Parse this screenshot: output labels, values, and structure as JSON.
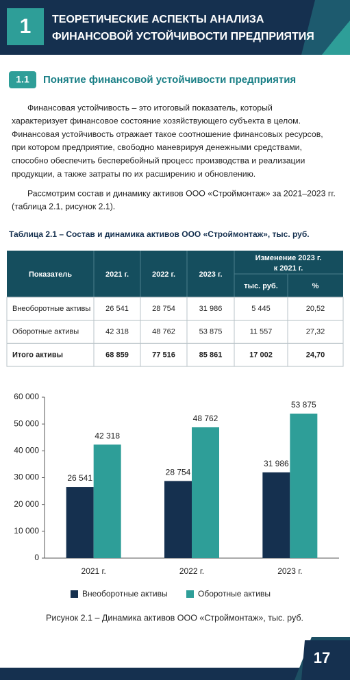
{
  "header": {
    "number": "1",
    "title": [
      "ТЕОРЕТИЧЕСКИЕ АСПЕКТЫ АНАЛИЗА",
      "ФИНАНСОВОЙ УСТОЙЧИВОСТИ ПРЕДПРИЯТИЯ"
    ]
  },
  "section": {
    "number": "1.1",
    "title": "Понятие финансовой устойчивости предприятия"
  },
  "paragraphs": [
    [
      "Финансовая устойчивость – это итоговый показатель, который",
      "характеризует финансовое состояние хозяйствующего субъекта в целом.",
      "Финансовая устойчивость отражает такое соотношение финансовых ресурсов,",
      "при котором предприятие, свободно маневрируя денежными средствами,",
      "способно обеспечить бесперебойный процесс производства и реализации",
      "продукции, а также затраты по их расширению и обновлению."
    ],
    [
      "Рассмотрим состав и динамику активов ООО «Строймонтаж» за 2021–2023 гг.",
      "(таблица 2.1, рисунок 2.1)."
    ]
  ],
  "table": {
    "caption": "Таблица 2.1 – Состав и динамика активов ООО «Строймонтаж», тыс. руб.",
    "columns": [
      "Показатель",
      "2021 г.",
      "2022 г.",
      "2023 г."
    ],
    "change_header": [
      "Изменение 2023 г.",
      "к 2021 г."
    ],
    "change_columns": [
      "тыс. руб.",
      "%"
    ],
    "rows": [
      [
        "Внеоборотные активы",
        "26 541",
        "28 754",
        "31 986",
        "5 445",
        "20,52"
      ],
      [
        "Оборотные активы",
        "42 318",
        "48 762",
        "53 875",
        "11 557",
        "27,32"
      ],
      [
        "Итого активы",
        "68 859",
        "77 516",
        "85 861",
        "17 002",
        "24,70"
      ]
    ]
  },
  "chart_data": {
    "type": "bar",
    "categories": [
      "2021 г.",
      "2022 г.",
      "2023 г."
    ],
    "series": [
      {
        "name": "Внеоборотные активы",
        "color": "#15304f",
        "values": [
          26541,
          28754,
          31986
        ],
        "value_labels": [
          "26 541",
          "28 754",
          "31 986"
        ]
      },
      {
        "name": "Оборотные активы",
        "color": "#2e9e98",
        "values": [
          42318,
          48762,
          53875
        ],
        "value_labels": [
          "42 318",
          "48 762",
          "53 875"
        ]
      }
    ],
    "ylim": [
      0,
      60000
    ],
    "yticks": [
      0,
      {
        "value": 10000,
        "label": "10 000"
      },
      {
        "value": 20000,
        "label": "20 000"
      },
      {
        "value": 30000,
        "label": "30 000"
      },
      {
        "value": 40000,
        "label": "40 000"
      },
      {
        "value": 50000,
        "label": "50 000"
      },
      {
        "value": 60000,
        "label": "60 000"
      }
    ],
    "grid": false,
    "caption": "Рисунок 2.1 – Динамика активов ООО «Строймонтаж», тыс. руб."
  },
  "page_number": "17"
}
